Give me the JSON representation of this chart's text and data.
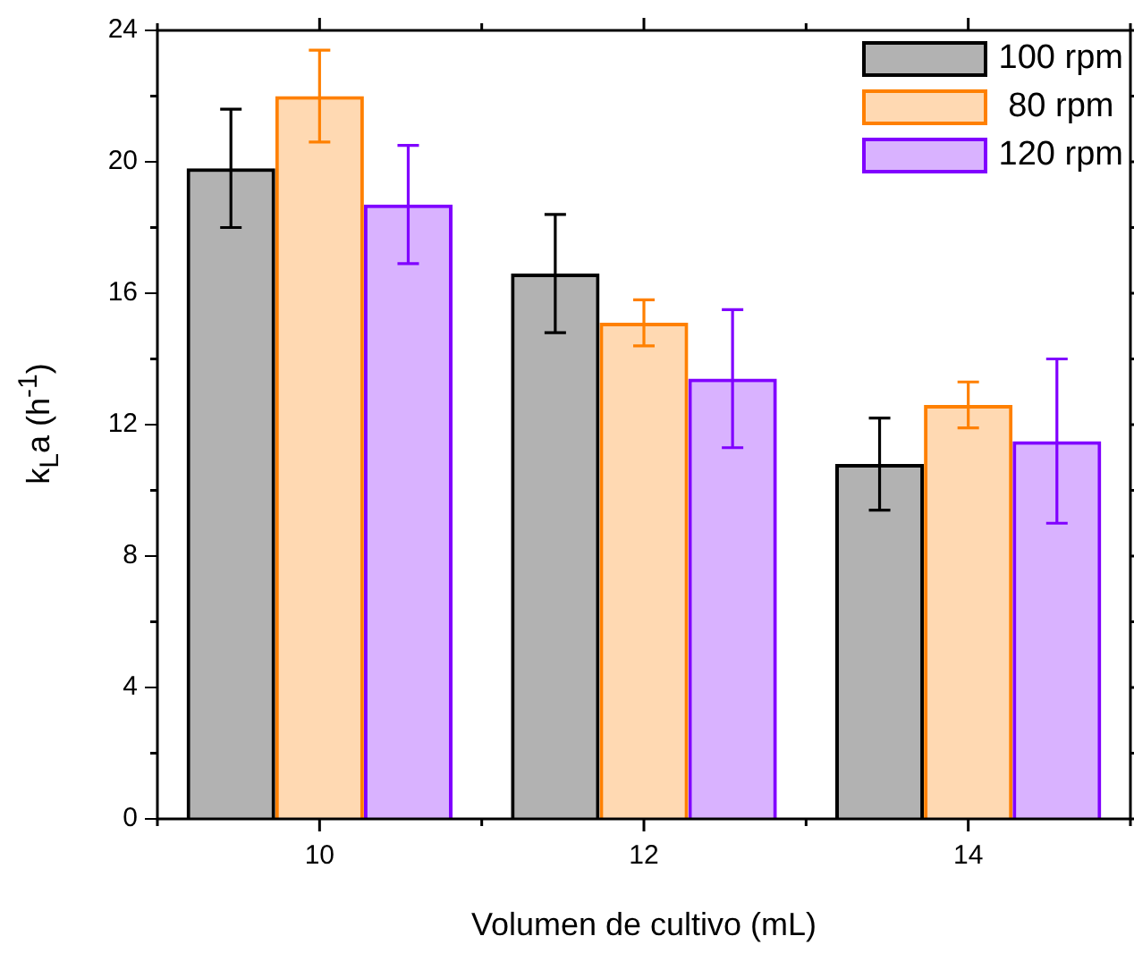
{
  "chart_data": {
    "type": "bar",
    "xlabel": "Volumen de cultivo (mL)",
    "ylabel": "k$_{L}$a (h$^{-1}$)",
    "categories": [
      "10",
      "12",
      "14"
    ],
    "ylim": [
      0,
      24
    ],
    "yticks": [
      0,
      4,
      8,
      12,
      16,
      20,
      24
    ],
    "grid": false,
    "legend": "top right",
    "series": [
      {
        "name": "100 rpm",
        "color": "#000000",
        "values": [
          19.8,
          16.6,
          10.8
        ],
        "errors": [
          1.8,
          1.8,
          1.4
        ]
      },
      {
        "name": " 80 rpm",
        "color": "#ff8000",
        "values": [
          22.0,
          15.1,
          12.6
        ],
        "errors": [
          1.4,
          0.7,
          0.7
        ]
      },
      {
        "name": "120 rpm",
        "color": "#8000ff",
        "values": [
          18.7,
          13.4,
          11.5
        ],
        "errors": [
          1.8,
          2.1,
          2.5
        ]
      }
    ]
  }
}
